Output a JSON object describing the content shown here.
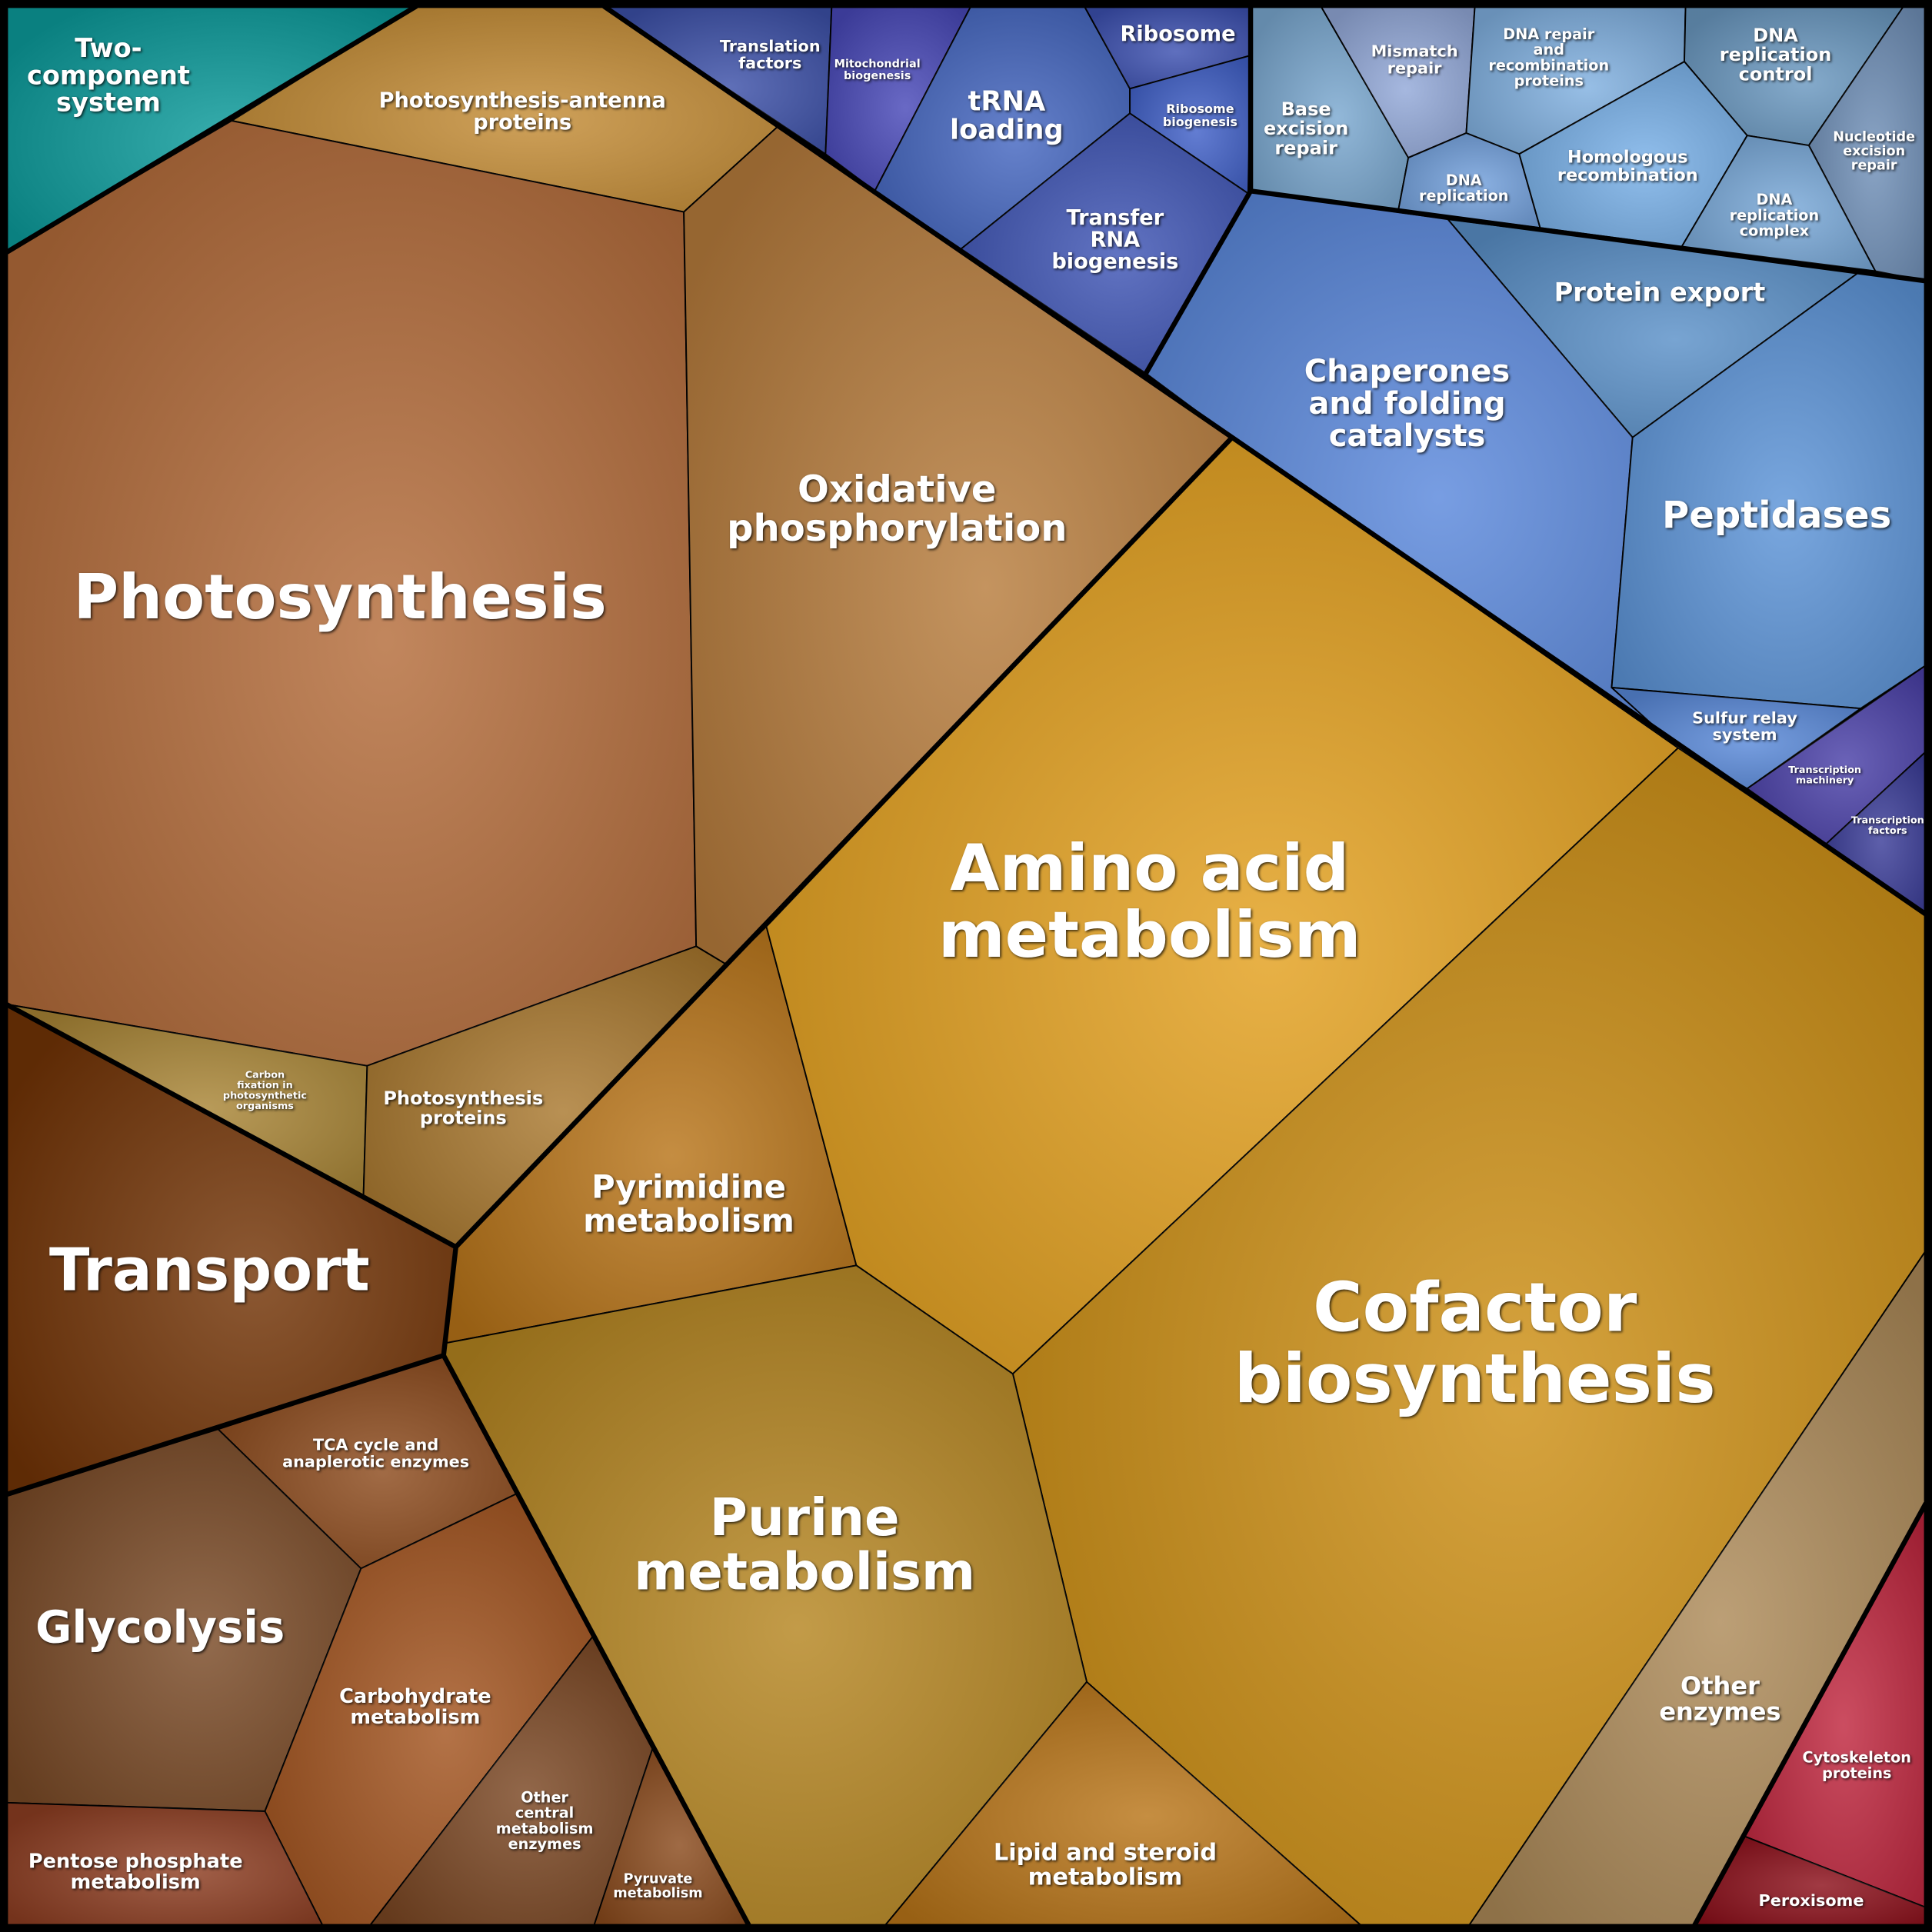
{
  "cells": [
    {
      "label": [
        "Two-",
        "component",
        "system"
      ]
    },
    {
      "label": [
        "Photosynthesis-antenna",
        "proteins"
      ]
    },
    {
      "label": [
        "Photosynthesis"
      ]
    },
    {
      "label": [
        "Oxidative",
        "phosphorylation"
      ]
    },
    {
      "label": [
        "Carbon",
        "fixation in",
        "photosynthetic",
        "organisms"
      ]
    },
    {
      "label": [
        "Photosynthesis",
        "proteins"
      ]
    },
    {
      "label": [
        "Transport"
      ]
    },
    {
      "label": [
        "Pyrimidine",
        "metabolism"
      ]
    },
    {
      "label": [
        "Amino acid",
        "metabolism"
      ]
    },
    {
      "label": [
        "Cofactor",
        "biosynthesis"
      ]
    },
    {
      "label": [
        "Purine",
        "metabolism"
      ]
    },
    {
      "label": [
        "Lipid and steroid",
        "metabolism"
      ]
    },
    {
      "label": [
        "Other",
        "enzymes"
      ]
    },
    {
      "label": [
        "Cytoskeleton",
        "proteins"
      ]
    },
    {
      "label": [
        "Peroxisome"
      ]
    },
    {
      "label": [
        "TCA cycle and",
        "anaplerotic enzymes"
      ]
    },
    {
      "label": [
        "Glycolysis"
      ]
    },
    {
      "label": [
        "Carbohydrate",
        "metabolism"
      ]
    },
    {
      "label": [
        "Pentose phosphate",
        "metabolism"
      ]
    },
    {
      "label": [
        "Other",
        "central",
        "metabolism",
        "enzymes"
      ]
    },
    {
      "label": [
        "Pyruvate",
        "metabolism"
      ]
    },
    {
      "label": [
        "Translation",
        "factors"
      ]
    },
    {
      "label": [
        "Mitochondrial",
        "biogenesis"
      ]
    },
    {
      "label": [
        "tRNA",
        "loading"
      ]
    },
    {
      "label": [
        "Ribosome"
      ]
    },
    {
      "label": [
        "Ribosome",
        "biogenesis"
      ]
    },
    {
      "label": [
        "Transfer",
        "RNA",
        "biogenesis"
      ]
    },
    {
      "label": [
        "Base",
        "excision",
        "repair"
      ]
    },
    {
      "label": [
        "Mismatch",
        "repair"
      ]
    },
    {
      "label": [
        "DNA repair",
        "and",
        "recombination",
        "proteins"
      ]
    },
    {
      "label": [
        "DNA",
        "replication",
        "control"
      ]
    },
    {
      "label": [
        "Nucleotide",
        "excision",
        "repair"
      ]
    },
    {
      "label": [
        "DNA",
        "replication"
      ]
    },
    {
      "label": [
        "Homologous",
        "recombination"
      ]
    },
    {
      "label": [
        "DNA",
        "replication",
        "complex"
      ]
    },
    {
      "label": [
        "Protein export"
      ]
    },
    {
      "label": [
        "Chaperones",
        "and folding",
        "catalysts"
      ]
    },
    {
      "label": [
        "Peptidases"
      ]
    },
    {
      "label": [
        "Sulfur relay",
        "system"
      ]
    },
    {
      "label": [
        "Transcription",
        "machinery"
      ]
    },
    {
      "label": [
        "Transcription",
        "factors"
      ]
    }
  ]
}
